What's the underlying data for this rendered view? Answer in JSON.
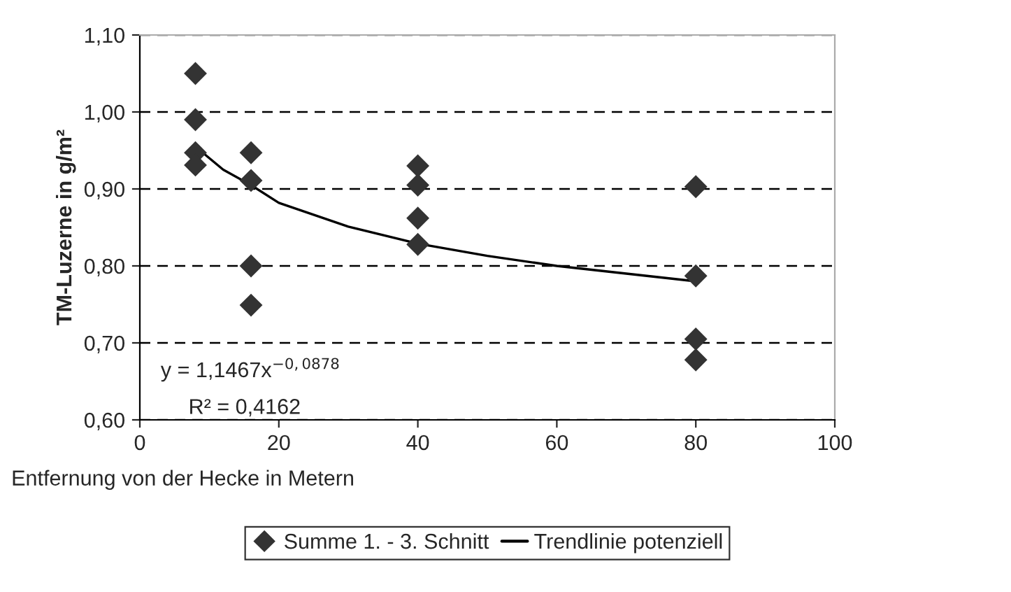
{
  "chart_data": {
    "type": "scatter",
    "ylabel": "TM-Luzerne in g/m²",
    "xlabel": "Entfernung von der Hecke in Metern",
    "series": [
      {
        "name": "Summe 1. - 3. Schnitt",
        "type": "scatter",
        "color": "#333333",
        "marker": "diamond",
        "x": [
          8,
          8,
          8,
          8,
          16,
          16,
          16,
          16,
          40,
          40,
          40,
          40,
          80,
          80,
          80,
          80
        ],
        "values": [
          1.05,
          0.99,
          0.947,
          0.931,
          0.947,
          0.911,
          0.8,
          0.749,
          0.93,
          0.905,
          0.862,
          0.828,
          0.903,
          0.787,
          0.705,
          0.678
        ]
      },
      {
        "name": "Trendlinie potenziell",
        "type": "line",
        "color": "#000000",
        "line_style": "solid",
        "x": [
          8,
          12,
          16,
          20,
          30,
          40,
          50,
          60,
          70,
          80
        ],
        "values": [
          0.955,
          0.925,
          0.905,
          0.882,
          0.851,
          0.829,
          0.813,
          0.8,
          0.79,
          0.78
        ]
      }
    ],
    "annotations": [
      "y = 1,1467x$^{−0,0878}$",
      "R² = 0,4162"
    ],
    "xlim": [
      0,
      100
    ],
    "xticks": [
      0,
      20,
      40,
      60,
      80,
      100
    ],
    "ylim": [
      0.6,
      1.1
    ],
    "yticks": [
      {
        "value": 0.6,
        "label": "0,60"
      },
      {
        "value": 0.7,
        "label": "0,70"
      },
      {
        "value": 0.8,
        "label": "0,80"
      },
      {
        "value": 0.9,
        "label": "0,90"
      },
      {
        "value": 1.0,
        "label": "1,00"
      },
      {
        "value": 1.1,
        "label": "1,10"
      }
    ],
    "grid": "y",
    "legend": "bottom"
  }
}
